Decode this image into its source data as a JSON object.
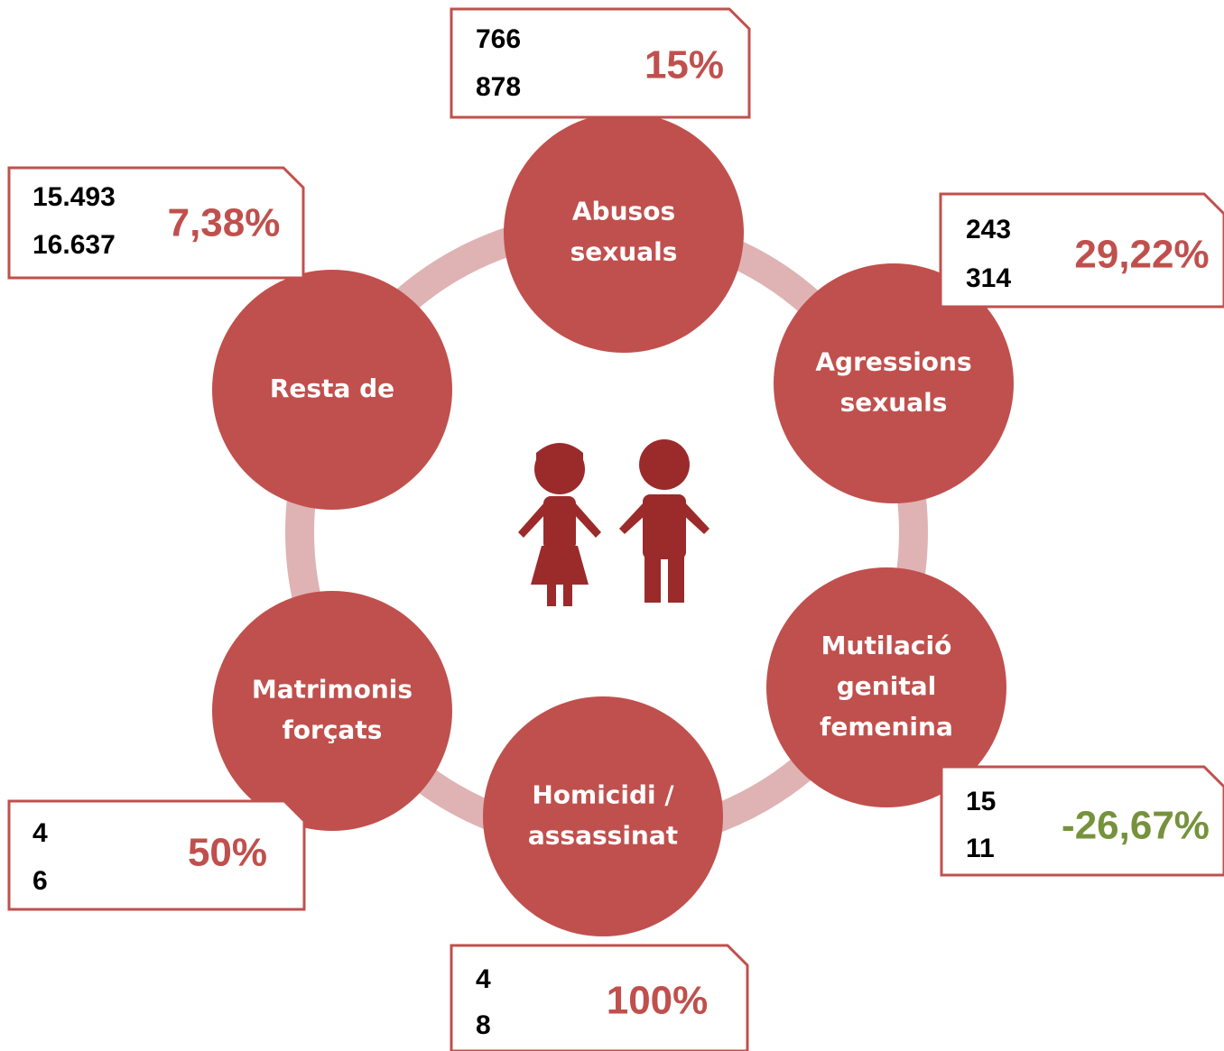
{
  "nodes": [
    {
      "label": [
        "Abusos",
        "sexuals"
      ],
      "values": [
        "766",
        "878"
      ],
      "change": "15%"
    },
    {
      "label": [
        "Agressions",
        "sexuals"
      ],
      "values": [
        "243",
        "314"
      ],
      "change": "29,22%"
    },
    {
      "label": [
        "Mutilació",
        "genital",
        "femenina"
      ],
      "values": [
        "15",
        "11"
      ],
      "change": "-26,67%"
    },
    {
      "label": [
        "Homicidi /",
        "assassinat"
      ],
      "values": [
        "4",
        "8"
      ],
      "change": "100%"
    },
    {
      "label": [
        "Matrimonis",
        "forçats"
      ],
      "values": [
        "4",
        "6"
      ],
      "change": "50%"
    },
    {
      "label": [
        "Resta de"
      ],
      "values": [
        "15.493",
        "16.637"
      ],
      "change": "7,38%"
    }
  ]
}
